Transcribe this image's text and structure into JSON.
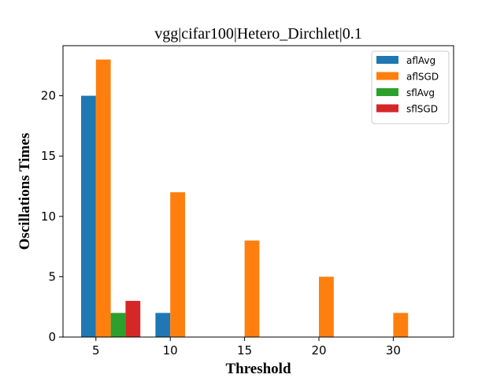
{
  "chart_data": {
    "type": "bar",
    "title": "vgg|cifar100|Hetero_Dirchlet|0.1",
    "xlabel": "Threshold",
    "ylabel": "Oscillations Times",
    "categories": [
      "5",
      "10",
      "15",
      "20",
      "30"
    ],
    "ylim": [
      0,
      24.15
    ],
    "yticks": [
      0,
      5,
      10,
      15,
      20
    ],
    "grid": false,
    "legend_position": "top-right",
    "series": [
      {
        "name": "aflAvg",
        "color": "#1f77b4",
        "values": [
          20,
          2,
          0,
          0,
          0
        ]
      },
      {
        "name": "aflSGD",
        "color": "#ff7f0e",
        "values": [
          23,
          12,
          8,
          5,
          2
        ]
      },
      {
        "name": "sflAvg",
        "color": "#2ca02c",
        "values": [
          2,
          0,
          0,
          0,
          0
        ]
      },
      {
        "name": "sflSGD",
        "color": "#d62728",
        "values": [
          3,
          0,
          0,
          0,
          0
        ]
      }
    ]
  }
}
